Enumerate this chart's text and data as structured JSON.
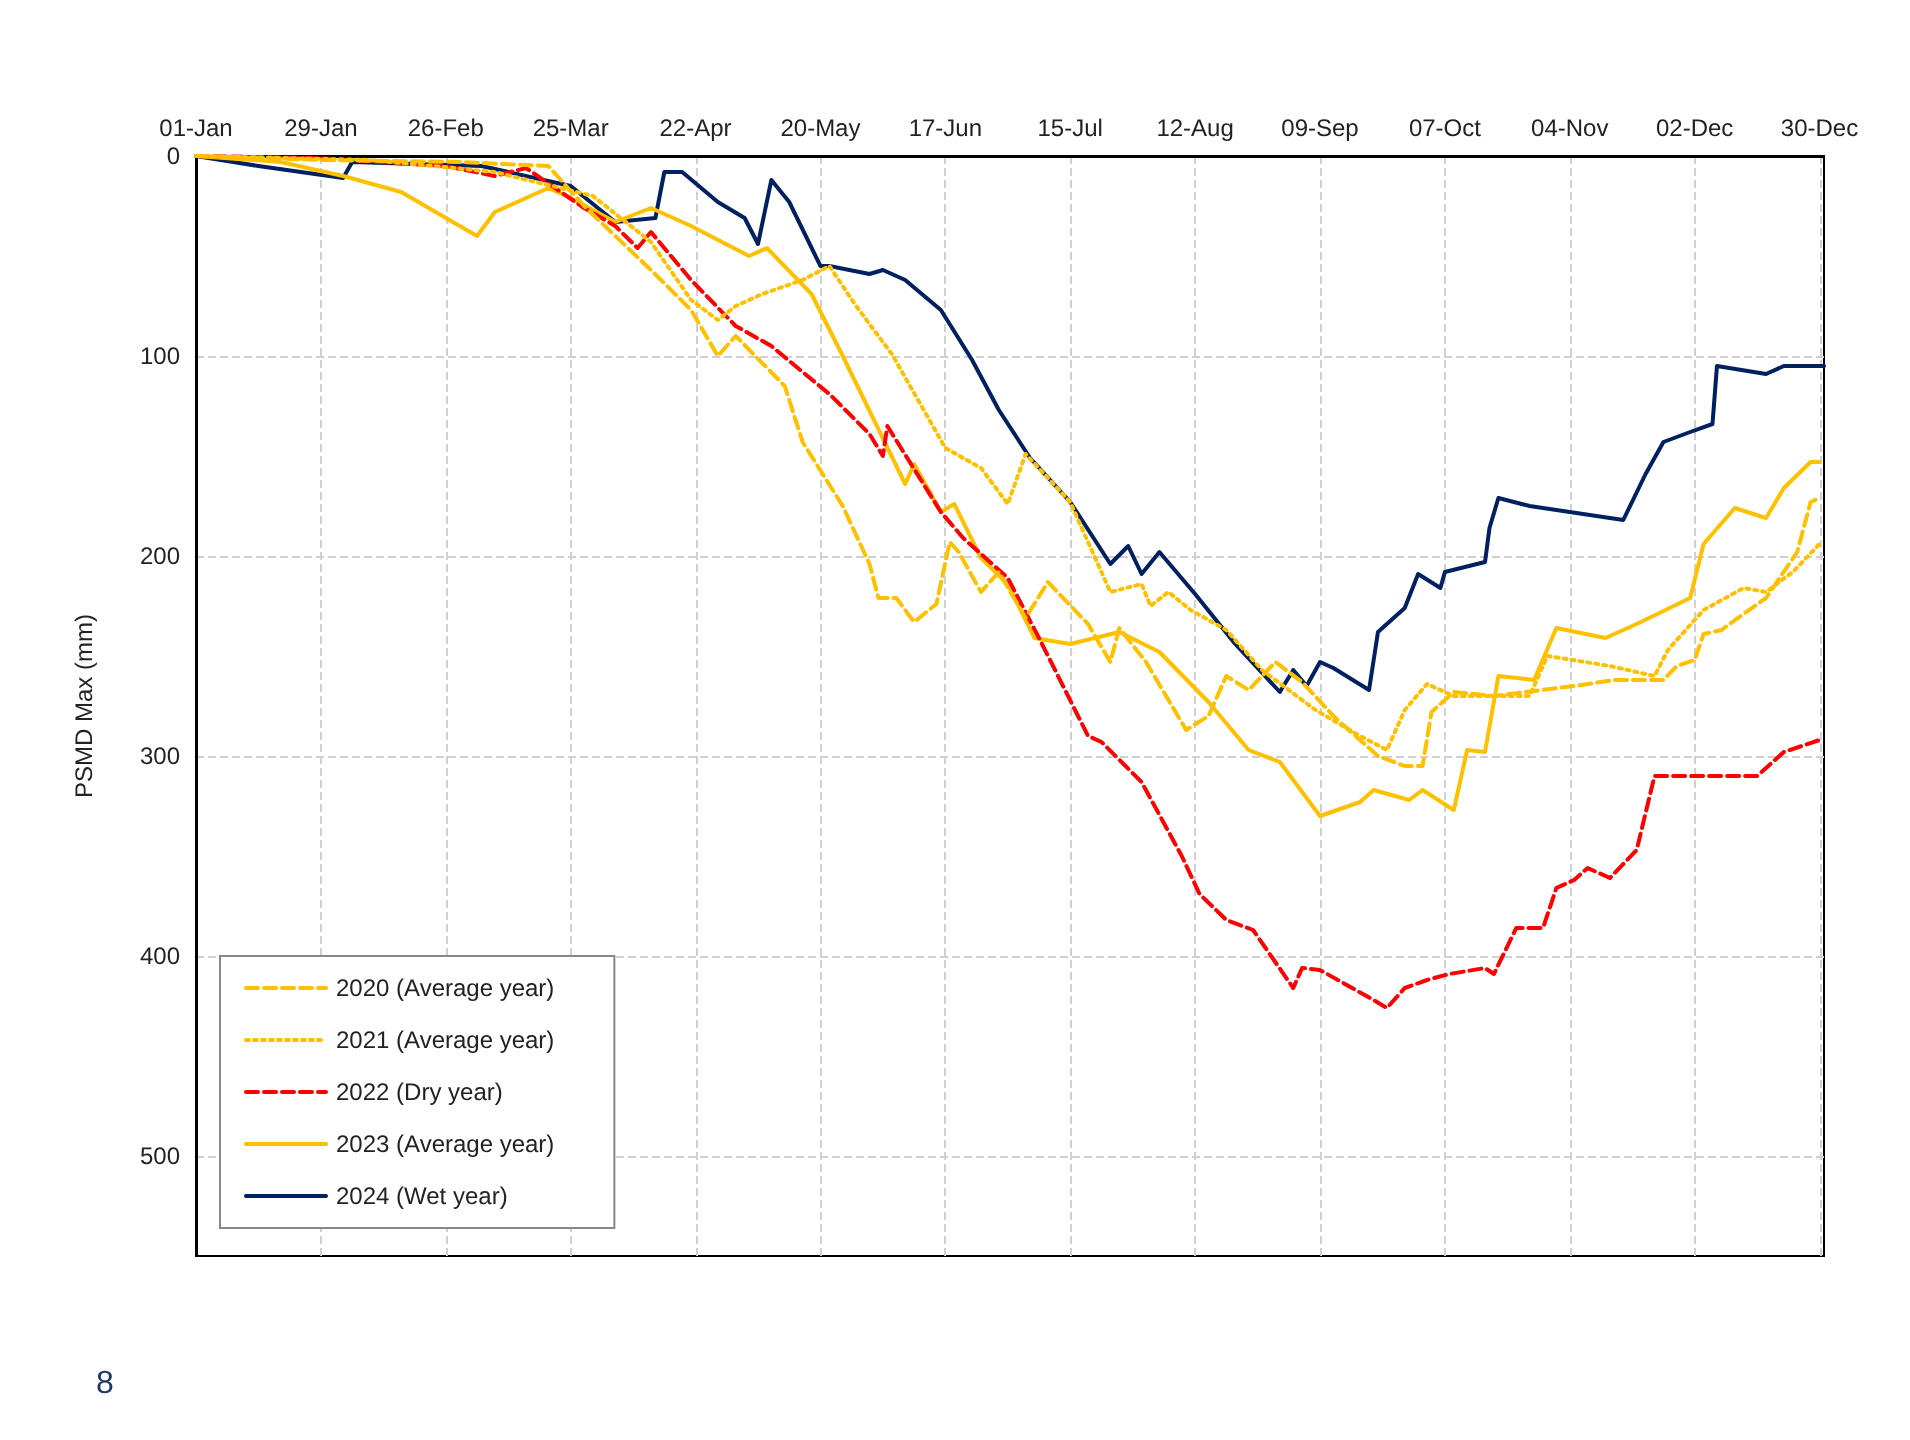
{
  "chart_data": {
    "type": "line",
    "ylabel": "PSMD Max (mm)",
    "annotations": [
      "8"
    ],
    "xlim": [
      "--01-01",
      "--12-31"
    ],
    "ylim": [
      550,
      0
    ],
    "xticks": [
      {
        "value": "--01-01",
        "label": "01-Jan"
      },
      {
        "value": "--01-29",
        "label": "29-Jan"
      },
      {
        "value": "--02-26",
        "label": "26-Feb"
      },
      {
        "value": "--03-25",
        "label": "25-Mar"
      },
      {
        "value": "--04-22",
        "label": "22-Apr"
      },
      {
        "value": "--05-20",
        "label": "20-May"
      },
      {
        "value": "--06-17",
        "label": "17-Jun"
      },
      {
        "value": "--07-15",
        "label": "15-Jul"
      },
      {
        "value": "--08-12",
        "label": "12-Aug"
      },
      {
        "value": "--09-09",
        "label": "09-Sep"
      },
      {
        "value": "--10-07",
        "label": "07-Oct"
      },
      {
        "value": "--11-04",
        "label": "04-Nov"
      },
      {
        "value": "--12-02",
        "label": "02-Dec"
      },
      {
        "value": "--12-30",
        "label": "30-Dec"
      }
    ],
    "yticks": [
      0,
      100,
      200,
      300,
      400,
      500
    ],
    "grid": true,
    "legend": "bottom left",
    "marker": "none",
    "series": [
      {
        "name": "2020 (Average year)",
        "color": "#ffc000",
        "line_style": "dashed",
        "x": [
          "--01-01",
          "--01-30",
          "--02-29",
          "--03-20",
          "--03-28",
          "--04-04",
          "--04-12",
          "--04-21",
          "--04-27",
          "--05-01",
          "--05-12",
          "--05-16",
          "--05-25",
          "--05-31",
          "--06-02",
          "--06-06",
          "--06-10",
          "--06-15",
          "--06-18",
          "--06-20",
          "--06-25",
          "--06-29",
          "--07-05",
          "--07-10",
          "--07-19",
          "--07-24",
          "--07-26",
          "--08-01",
          "--08-10",
          "--08-15",
          "--08-19",
          "--08-24",
          "--08-30",
          "--09-05",
          "--09-12",
          "--09-22",
          "--09-28",
          "--10-02",
          "--10-04",
          "--10-09",
          "--10-18",
          "--11-05",
          "--11-14",
          "--11-25",
          "--11-28",
          "--12-02",
          "--12-04",
          "--12-08",
          "--12-18",
          "--12-25",
          "--12-28",
          "--12-30"
        ],
        "values": [
          0,
          2,
          3,
          5,
          25,
          40,
          57,
          77,
          100,
          90,
          115,
          143,
          175,
          204,
          221,
          221,
          233,
          224,
          193,
          198,
          218,
          208,
          231,
          213,
          234,
          253,
          236,
          253,
          287,
          280,
          260,
          267,
          253,
          263,
          280,
          300,
          305,
          305,
          278,
          268,
          270,
          265,
          262,
          262,
          255,
          252,
          239,
          237,
          221,
          198,
          173,
          171
        ]
      },
      {
        "name": "2021 (Average year)",
        "color": "#ffc000",
        "line_style": "dotted",
        "x": [
          "--01-01",
          "--02-09",
          "--03-08",
          "--03-30",
          "--04-12",
          "--04-21",
          "--04-27",
          "--05-01",
          "--05-07",
          "--05-16",
          "--05-22",
          "--05-28",
          "--06-05",
          "--06-17",
          "--06-25",
          "--07-01",
          "--07-05",
          "--07-15",
          "--07-24",
          "--07-31",
          "--08-02",
          "--08-06",
          "--08-11",
          "--08-19",
          "--08-27",
          "--09-08",
          "--09-18",
          "--09-24",
          "--09-28",
          "--10-03",
          "--10-09",
          "--10-26",
          "--10-30",
          "--11-13",
          "--11-23",
          "--11-26",
          "--12-04",
          "--12-13",
          "--12-18",
          "--12-24",
          "--12-30"
        ],
        "values": [
          0,
          2,
          8,
          20,
          43,
          72,
          82,
          75,
          69,
          62,
          55,
          75,
          99,
          146,
          156,
          174,
          149,
          173,
          218,
          214,
          225,
          218,
          227,
          237,
          257,
          277,
          290,
          297,
          277,
          264,
          270,
          270,
          250,
          255,
          260,
          247,
          227,
          216,
          218,
          208,
          194
        ]
      },
      {
        "name": "2022 (Dry year)",
        "color": "#ff0000",
        "line_style": "dashed",
        "x": [
          "--01-01",
          "--01-28",
          "--02-26",
          "--03-08",
          "--03-15",
          "--03-28",
          "--04-04",
          "--04-09",
          "--04-12",
          "--04-21",
          "--05-01",
          "--05-09",
          "--05-16",
          "--05-22",
          "--05-31",
          "--06-03",
          "--06-04",
          "--06-16",
          "--06-21",
          "--07-01",
          "--07-08",
          "--07-19",
          "--07-22",
          "--07-31",
          "--08-09",
          "--08-13",
          "--08-19",
          "--08-25",
          "--09-03",
          "--09-05",
          "--09-09",
          "--09-21",
          "--09-24",
          "--09-28",
          "--10-03",
          "--10-08",
          "--10-16",
          "--10-18",
          "--10-23",
          "--10-29",
          "--11-01",
          "--11-05",
          "--11-08",
          "--11-13",
          "--11-19",
          "--11-23",
          "--12-16",
          "--12-22",
          "--12-30"
        ],
        "values": [
          0,
          1,
          5,
          10,
          6,
          26,
          35,
          46,
          38,
          62,
          85,
          95,
          108,
          119,
          139,
          150,
          135,
          178,
          191,
          211,
          241,
          290,
          293,
          313,
          350,
          369,
          382,
          387,
          416,
          406,
          407,
          422,
          426,
          416,
          412,
          409,
          406,
          409,
          386,
          386,
          366,
          362,
          356,
          361,
          347,
          310,
          310,
          298,
          292
        ]
      },
      {
        "name": "2023 (Average year)",
        "color": "#ffc000",
        "line_style": "solid",
        "x": [
          "--01-01",
          "--01-20",
          "--02-03",
          "--02-16",
          "--03-04",
          "--03-08",
          "--03-20",
          "--03-25",
          "--04-04",
          "--04-12",
          "--04-21",
          "--05-04",
          "--05-08",
          "--05-18",
          "--05-25",
          "--06-08",
          "--06-10",
          "--06-16",
          "--06-19",
          "--06-25",
          "--07-01",
          "--07-07",
          "--07-15",
          "--07-26",
          "--08-04",
          "--08-15",
          "--08-24",
          "--08-31",
          "--09-09",
          "--09-18",
          "--09-21",
          "--09-29",
          "--10-02",
          "--10-09",
          "--10-12",
          "--10-16",
          "--10-19",
          "--10-27",
          "--11-01",
          "--11-12",
          "--11-19",
          "--12-01",
          "--12-04",
          "--12-11",
          "--12-18",
          "--12-22",
          "--12-28",
          "--12-30"
        ],
        "values": [
          0,
          3,
          10,
          18,
          40,
          28,
          16,
          21,
          33,
          26,
          35,
          50,
          46,
          69,
          100,
          164,
          154,
          178,
          174,
          201,
          214,
          241,
          244,
          238,
          248,
          273,
          297,
          303,
          330,
          323,
          317,
          322,
          317,
          327,
          297,
          298,
          260,
          262,
          236,
          241,
          234,
          221,
          194,
          176,
          181,
          166,
          153,
          153
        ]
      },
      {
        "name": "2024 (Wet year)",
        "color": "#002060",
        "line_style": "solid",
        "x": [
          "--01-01",
          "--01-15",
          "--02-03",
          "--02-05",
          "--03-05",
          "--03-25",
          "--04-04",
          "--04-13",
          "--04-15",
          "--04-19",
          "--04-27",
          "--05-03",
          "--05-06",
          "--05-09",
          "--05-13",
          "--05-20",
          "--05-22",
          "--05-31",
          "--06-03",
          "--06-08",
          "--06-16",
          "--06-23",
          "--06-29",
          "--07-06",
          "--07-15",
          "--07-24",
          "--07-28",
          "--07-31",
          "--08-04",
          "--08-12",
          "--08-21",
          "--08-31",
          "--09-03",
          "--09-06",
          "--09-09",
          "--09-12",
          "--09-20",
          "--09-22",
          "--09-28",
          "--10-01",
          "--10-06",
          "--10-07",
          "--10-16",
          "--10-17",
          "--10-19",
          "--10-26",
          "--11-16",
          "--11-21",
          "--11-25",
          "--12-01",
          "--12-06",
          "--12-07",
          "--12-18",
          "--12-22",
          "--12-31"
        ],
        "values": [
          0,
          5,
          11,
          3,
          5,
          15,
          33,
          31,
          8,
          8,
          23,
          31,
          44,
          12,
          23,
          55,
          55,
          59,
          57,
          62,
          77,
          102,
          127,
          151,
          173,
          204,
          195,
          209,
          198,
          219,
          244,
          268,
          257,
          265,
          253,
          256,
          267,
          238,
          226,
          209,
          216,
          208,
          203,
          186,
          171,
          175,
          182,
          159,
          143,
          138,
          134,
          105,
          109,
          105,
          105
        ]
      }
    ]
  }
}
